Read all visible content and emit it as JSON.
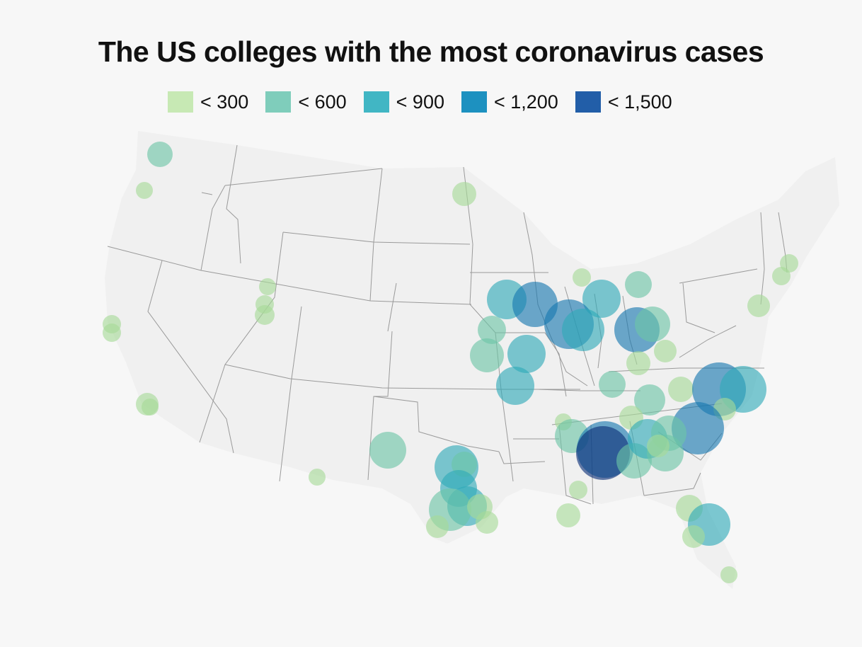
{
  "title": "The US colleges with the most coronavirus cases",
  "legend": [
    {
      "label": "< 300",
      "color": "#c7e9b4"
    },
    {
      "label": "< 600",
      "color": "#7fcdbb"
    },
    {
      "label": "< 900",
      "color": "#41b6c4"
    },
    {
      "label": "< 1,200",
      "color": "#1d91c0"
    },
    {
      "label": "< 1,500",
      "color": "#225ea8"
    }
  ],
  "bubble_colors": [
    "#a6da97",
    "#6cc5a6",
    "#2fa9b8",
    "#1678b0",
    "#0c2f78"
  ],
  "map_colors": {
    "land": "#f0f0f0",
    "state_border": "#9a9a9a"
  }
}
